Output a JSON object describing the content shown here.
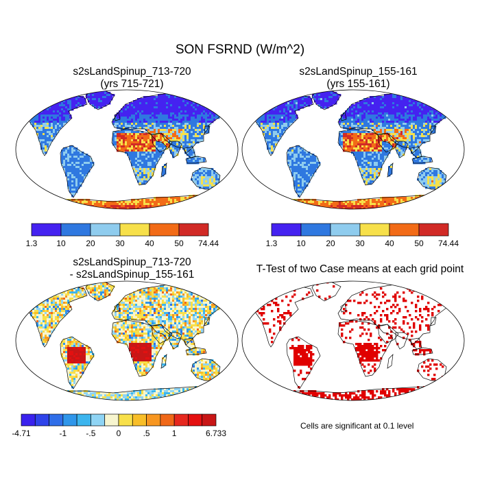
{
  "figure": {
    "title": "SON FSRND (W/m^2)"
  },
  "panels": [
    {
      "id": "case1",
      "title_line1": "s2sLandSpinup_713-720",
      "title_line2": "(yrs 715-721)"
    },
    {
      "id": "case2",
      "title_line1": "s2sLandSpinup_155-161",
      "title_line2": "(yrs 155-161)"
    },
    {
      "id": "diff",
      "title_line1": "s2sLandSpinup_713-720",
      "title_line2": "- s2sLandSpinup_155-161"
    },
    {
      "id": "ttest",
      "title_line1": "T-Test of two Case means at each grid point",
      "title_line2": ""
    }
  ],
  "colorbar_main": {
    "colors": [
      "#4522f0",
      "#2f78e0",
      "#8fccee",
      "#f7e04a",
      "#f26b17",
      "#d12a26"
    ],
    "labels": [
      "1.3",
      "10",
      "20",
      "30",
      "40",
      "50",
      "74.44"
    ]
  },
  "colorbar_diff": {
    "colors": [
      "#3a22ee",
      "#2f44ea",
      "#2f6ee8",
      "#2f96ea",
      "#3cb5ee",
      "#8fd4f4",
      "#f7f5cf",
      "#f8e04a",
      "#f8be28",
      "#f79620",
      "#f06818",
      "#e6281e",
      "#e41010",
      "#c81616"
    ],
    "labels": [
      "-4.71",
      "-1",
      "-.5",
      "0",
      ".5",
      "1",
      "6.733"
    ],
    "label_after_box": [
      0,
      3,
      5,
      7,
      9,
      11,
      14
    ]
  },
  "ttest_note": "Cells are significant at 0.1 level",
  "map_colors": {
    "ocean": "#ffffff",
    "coast": "#000000",
    "significant": "#e00000",
    "diff_pos_strong": "#c81616",
    "diff_near_zero": "#f7f5cf"
  }
}
